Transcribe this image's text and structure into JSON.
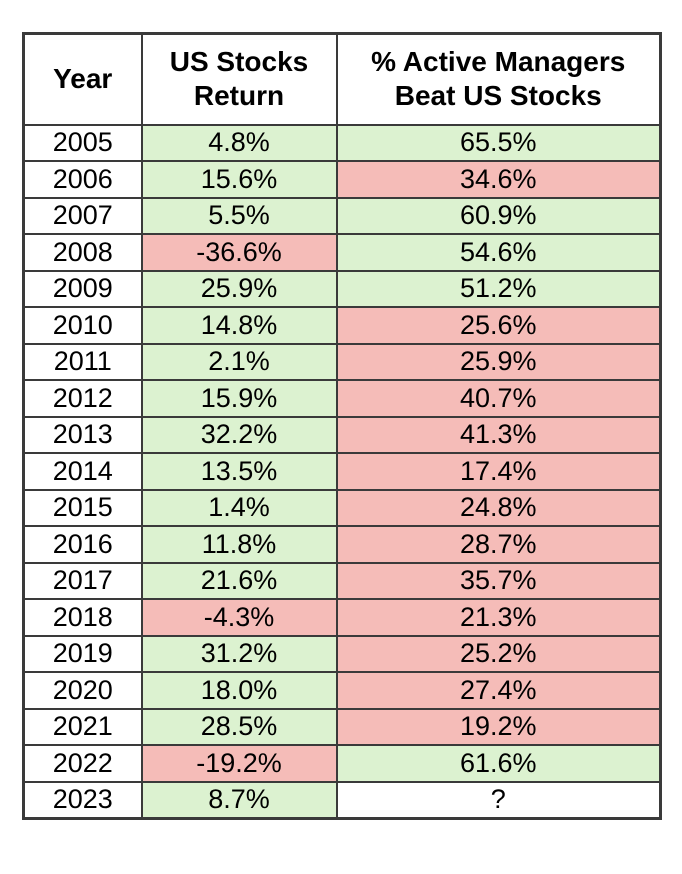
{
  "page": {
    "background": "#ffffff"
  },
  "table": {
    "columns": [
      "Year",
      "US Stocks Return",
      "% Active Managers Beat US Stocks"
    ],
    "colors": {
      "positive_cell": "#dcf2d0",
      "negative_cell": "#f5bcb8",
      "neutral_cell": "#ffffff",
      "border": "#3a3a3a",
      "text": "#000000"
    },
    "rows": [
      {
        "year": "2005",
        "us_return": "4.8%",
        "us_return_tone": "positive",
        "beat": "65.5%",
        "beat_tone": "positive"
      },
      {
        "year": "2006",
        "us_return": "15.6%",
        "us_return_tone": "positive",
        "beat": "34.6%",
        "beat_tone": "negative"
      },
      {
        "year": "2007",
        "us_return": "5.5%",
        "us_return_tone": "positive",
        "beat": "60.9%",
        "beat_tone": "positive"
      },
      {
        "year": "2008",
        "us_return": "-36.6%",
        "us_return_tone": "negative",
        "beat": "54.6%",
        "beat_tone": "positive"
      },
      {
        "year": "2009",
        "us_return": "25.9%",
        "us_return_tone": "positive",
        "beat": "51.2%",
        "beat_tone": "positive"
      },
      {
        "year": "2010",
        "us_return": "14.8%",
        "us_return_tone": "positive",
        "beat": "25.6%",
        "beat_tone": "negative"
      },
      {
        "year": "2011",
        "us_return": "2.1%",
        "us_return_tone": "positive",
        "beat": "25.9%",
        "beat_tone": "negative"
      },
      {
        "year": "2012",
        "us_return": "15.9%",
        "us_return_tone": "positive",
        "beat": "40.7%",
        "beat_tone": "negative"
      },
      {
        "year": "2013",
        "us_return": "32.2%",
        "us_return_tone": "positive",
        "beat": "41.3%",
        "beat_tone": "negative"
      },
      {
        "year": "2014",
        "us_return": "13.5%",
        "us_return_tone": "positive",
        "beat": "17.4%",
        "beat_tone": "negative"
      },
      {
        "year": "2015",
        "us_return": "1.4%",
        "us_return_tone": "positive",
        "beat": "24.8%",
        "beat_tone": "negative"
      },
      {
        "year": "2016",
        "us_return": "11.8%",
        "us_return_tone": "positive",
        "beat": "28.7%",
        "beat_tone": "negative"
      },
      {
        "year": "2017",
        "us_return": "21.6%",
        "us_return_tone": "positive",
        "beat": "35.7%",
        "beat_tone": "negative"
      },
      {
        "year": "2018",
        "us_return": "-4.3%",
        "us_return_tone": "negative",
        "beat": "21.3%",
        "beat_tone": "negative"
      },
      {
        "year": "2019",
        "us_return": "31.2%",
        "us_return_tone": "positive",
        "beat": "25.2%",
        "beat_tone": "negative"
      },
      {
        "year": "2020",
        "us_return": "18.0%",
        "us_return_tone": "positive",
        "beat": "27.4%",
        "beat_tone": "negative"
      },
      {
        "year": "2021",
        "us_return": "28.5%",
        "us_return_tone": "positive",
        "beat": "19.2%",
        "beat_tone": "negative"
      },
      {
        "year": "2022",
        "us_return": "-19.2%",
        "us_return_tone": "negative",
        "beat": "61.6%",
        "beat_tone": "positive"
      },
      {
        "year": "2023",
        "us_return": "8.7%",
        "us_return_tone": "positive",
        "beat": "?",
        "beat_tone": "neutral"
      }
    ]
  },
  "chart_data": {
    "type": "table",
    "title": "",
    "columns": [
      "Year",
      "US Stocks Return",
      "% Active Managers Beat US Stocks"
    ],
    "years": [
      2005,
      2006,
      2007,
      2008,
      2009,
      2010,
      2011,
      2012,
      2013,
      2014,
      2015,
      2016,
      2017,
      2018,
      2019,
      2020,
      2021,
      2022,
      2023
    ],
    "us_stocks_return_pct": [
      4.8,
      15.6,
      5.5,
      -36.6,
      25.9,
      14.8,
      2.1,
      15.9,
      32.2,
      13.5,
      1.4,
      11.8,
      21.6,
      -4.3,
      31.2,
      18.0,
      28.5,
      -19.2,
      8.7
    ],
    "pct_active_managers_beat_us_stocks": [
      65.5,
      34.6,
      60.9,
      54.6,
      51.2,
      25.6,
      25.9,
      40.7,
      41.3,
      17.4,
      24.8,
      28.7,
      35.7,
      21.3,
      25.2,
      27.4,
      19.2,
      61.6,
      null
    ],
    "cell_highlighting": "green = favorable, pink = unfavorable, white = unknown (?)"
  }
}
